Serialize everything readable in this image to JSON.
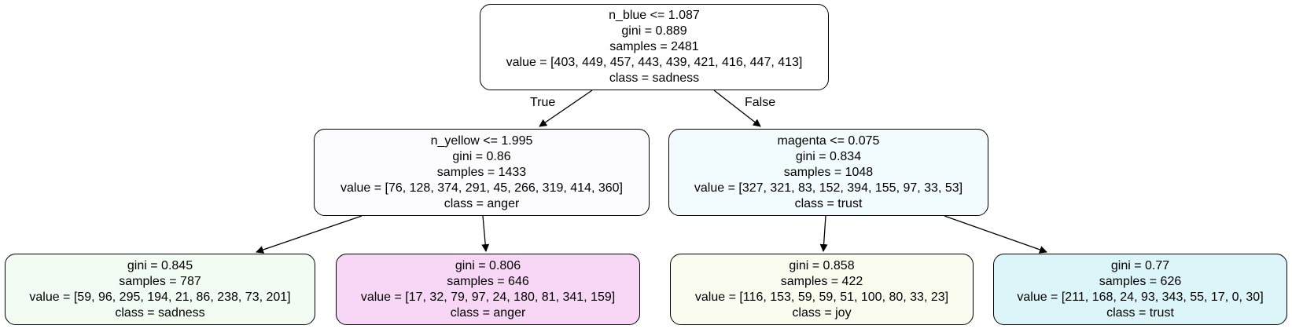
{
  "colors": {
    "edge": "#000000",
    "border": "#000000"
  },
  "edge_labels": {
    "true": "True",
    "false": "False"
  },
  "nodes": {
    "root": {
      "color": "#fefefe",
      "split": "n_blue <= 1.087",
      "gini": "gini = 0.889",
      "samples": "samples = 2481",
      "value": "value = [403, 449, 457, 443, 439, 421, 416, 447, 413]",
      "class": "class = sadness"
    },
    "left": {
      "color": "#fcfbfe",
      "split": "n_yellow <= 1.995",
      "gini": "gini = 0.86",
      "samples": "samples = 1433",
      "value": "value = [76, 128, 374, 291, 45, 266, 319, 414, 360]",
      "class": "class = anger"
    },
    "right": {
      "color": "#f2fbfd",
      "split": "magenta <= 0.075",
      "gini": "gini = 0.834",
      "samples": "samples = 1048",
      "value": "value = [327, 321, 83, 152, 394, 155, 97, 33, 53]",
      "class": "class = trust"
    },
    "leaf1": {
      "color": "#f3fcf3",
      "gini": "gini = 0.845",
      "samples": "samples = 787",
      "value": "value = [59, 96, 295, 194, 21, 86, 238, 73, 201]",
      "class": "class = sadness"
    },
    "leaf2": {
      "color": "#f8d6f6",
      "gini": "gini = 0.806",
      "samples": "samples = 646",
      "value": "value = [17, 32, 79, 97, 24, 180, 81, 341, 159]",
      "class": "class = anger"
    },
    "leaf3": {
      "color": "#fafcef",
      "gini": "gini = 0.858",
      "samples": "samples = 422",
      "value": "value = [116, 153, 59, 59, 51, 100, 80, 33, 23]",
      "class": "class = joy"
    },
    "leaf4": {
      "color": "#dbf5f9",
      "gini": "gini = 0.77",
      "samples": "samples = 626",
      "value": "value = [211, 168, 24, 93, 343, 55, 17, 0, 30]",
      "class": "class = trust"
    }
  }
}
